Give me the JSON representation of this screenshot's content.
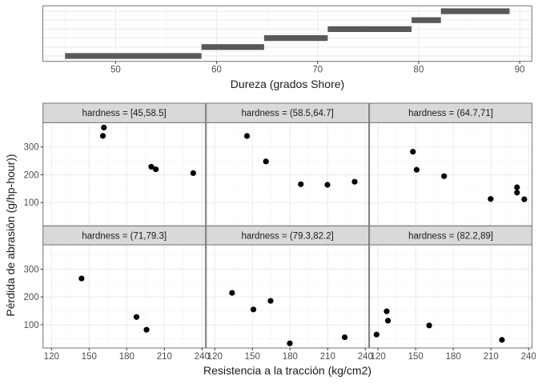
{
  "chart_data": [
    {
      "type": "bar",
      "subtype": "horizontal-range",
      "title": "",
      "xlabel": "Dureza (grados Shore)",
      "ylabel": "",
      "xlim": [
        42.8,
        91.2
      ],
      "xticks": [
        50,
        60,
        70,
        80,
        90
      ],
      "grid": true,
      "ranges": [
        {
          "start": 45,
          "end": 58.5
        },
        {
          "start": 58.5,
          "end": 64.7
        },
        {
          "start": 64.7,
          "end": 71
        },
        {
          "start": 71,
          "end": 79.3
        },
        {
          "start": 79.3,
          "end": 82.2
        },
        {
          "start": 82.2,
          "end": 89
        }
      ],
      "bar_color": "#595959"
    },
    {
      "type": "scatter",
      "xlabel": "Resistencia a la tracción (kg/cm2)",
      "ylabel": "Pérdida de abrasión (g/hp-hour))",
      "xlim": [
        113.25,
        242.75
      ],
      "ylim": [
        16.4,
        387.6
      ],
      "xticks": [
        120,
        150,
        180,
        210,
        240
      ],
      "yticks": [
        100,
        200,
        300
      ],
      "grid": true,
      "point_color": "#000000",
      "facets": [
        {
          "label": "hardness = [45,58.5]",
          "points": [
            [
              161.8,
              370
            ],
            [
              161,
              340
            ],
            [
              199.6,
              229
            ],
            [
              203.2,
              220
            ],
            [
              233,
              206
            ]
          ]
        },
        {
          "label": "hardness = (58.5,64.7]",
          "points": [
            [
              145.7,
              339.5
            ],
            [
              160.8,
              248
            ],
            [
              188.6,
              166
            ],
            [
              209.8,
              164
            ],
            [
              231.5,
              175
            ]
          ]
        },
        {
          "label": "hardness = (64.7,71]",
          "points": [
            [
              147.8,
              283
            ],
            [
              150.8,
              218
            ],
            [
              172.7,
              195
            ],
            [
              209.8,
              113
            ],
            [
              230.8,
              155
            ],
            [
              230.8,
              136
            ],
            [
              236.6,
              112
            ]
          ]
        },
        {
          "label": "hardness = (71,79.3]",
          "points": [
            [
              144,
              266.6
            ],
            [
              187.8,
              128
            ],
            [
              195.8,
              82
            ]
          ]
        },
        {
          "label": "hardness = (79.3,82.2]",
          "points": [
            [
              133.8,
              214.7
            ],
            [
              150.8,
              155
            ],
            [
              164.5,
              186
            ],
            [
              179.8,
              33
            ],
            [
              223.6,
              55
            ]
          ]
        },
        {
          "label": "hardness = (82.2,89]",
          "points": [
            [
              118.8,
              64.8
            ],
            [
              126.9,
              148.4
            ],
            [
              127.9,
              114.7
            ],
            [
              160.8,
              97.4
            ],
            [
              218.8,
              45.5
            ]
          ]
        }
      ]
    }
  ]
}
